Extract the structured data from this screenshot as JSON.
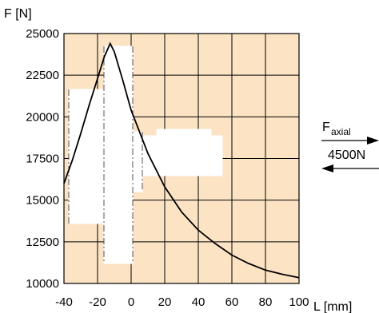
{
  "chart_data": {
    "type": "line",
    "title": "",
    "ylabel": "F [N]",
    "xlabel": "L [mm]",
    "xlim": [
      -40,
      100
    ],
    "ylim": [
      10000,
      25000
    ],
    "x_ticks": [
      -40,
      -20,
      0,
      20,
      40,
      60,
      80,
      100
    ],
    "y_ticks": [
      10000,
      12500,
      15000,
      17500,
      20000,
      22500,
      25000
    ],
    "grid": true,
    "background_color": "#fbe3c4",
    "curve_color": "#000000",
    "series": [
      {
        "x": [
          -40,
          -35,
          -30,
          -25,
          -20,
          -16,
          -12.5,
          -10,
          -5,
          0,
          10,
          20,
          30,
          40,
          50,
          60,
          70,
          80,
          90,
          100
        ],
        "y": [
          16000,
          17400,
          19000,
          20700,
          22300,
          23600,
          24400,
          23900,
          22200,
          20400,
          17800,
          15800,
          14300,
          13200,
          12400,
          11700,
          11200,
          10800,
          10550,
          10350
        ]
      }
    ],
    "annotation": {
      "force_label": "F",
      "force_subscript": "axial",
      "force_value": "4500N"
    }
  }
}
